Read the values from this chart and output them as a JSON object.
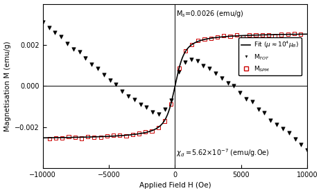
{
  "title": "",
  "xlabel": "Applied Field H (Oe)",
  "ylabel": "Magnetisation M (emu/g)",
  "xlim": [
    -10000,
    10000
  ],
  "ylim": [
    -0.004,
    0.004
  ],
  "Ms": 0.0026,
  "chi_d": -5.62e-07,
  "langevin_scale": 0.0035,
  "background_color": "#ffffff",
  "fit_color": "#000000",
  "mtot_color": "#000000",
  "mspm_color": "#cc0000",
  "annotation_ms": "M$_s$=0.0026 (emu/g)",
  "annotation_chi": "$\\chi_d$ =5.62×10$^{-7}$ (emu/g.Oe)",
  "legend_fit": "Fit ($\\mu$$\\approx$10$^4$$\\mu_B$)",
  "legend_mtot": "M$_{TOT}$",
  "legend_mspm": "M$_{SPM}$",
  "yticks": [
    -0.002,
    0,
    0.002
  ],
  "xticks": [
    -10000,
    -5000,
    0,
    5000,
    10000
  ]
}
